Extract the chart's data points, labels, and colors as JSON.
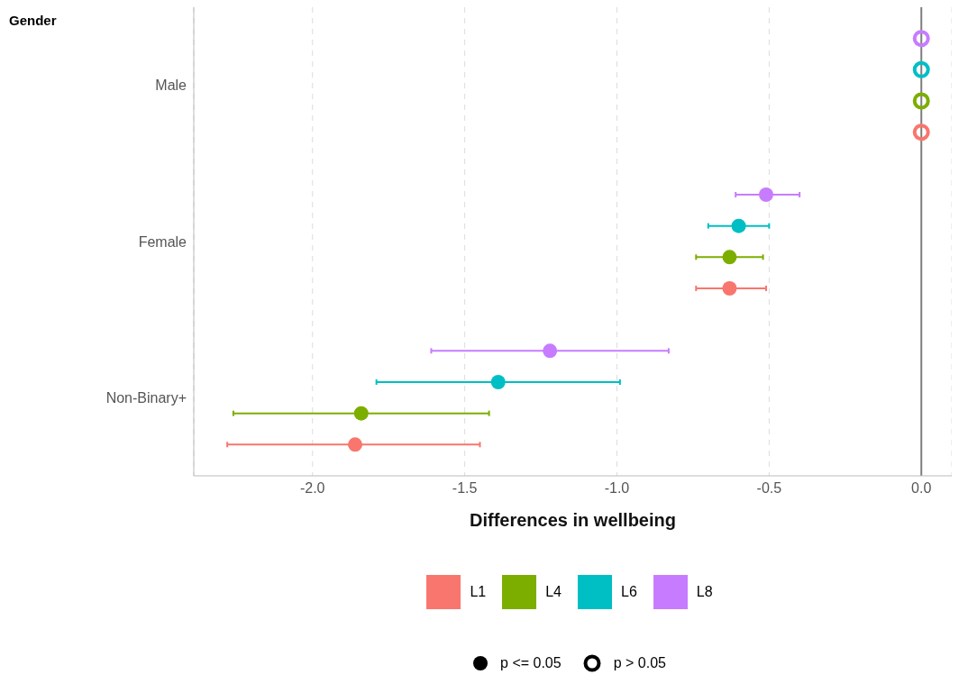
{
  "chart_data": {
    "type": "scatter",
    "orientation": "horizontal",
    "ylabel": "Gender",
    "xlabel": "Differences in wellbeing",
    "categories": [
      "Male",
      "Female",
      "Non-Binary+"
    ],
    "series": [
      {
        "name": "L1",
        "color": "#f8766d",
        "values": [
          0,
          -0.63,
          -1.86
        ],
        "errors": [
          null,
          [
            -0.74,
            -0.51
          ],
          [
            -2.28,
            -1.45
          ]
        ]
      },
      {
        "name": "L4",
        "color": "#7cae00",
        "values": [
          0,
          -0.63,
          -1.84
        ],
        "errors": [
          null,
          [
            -0.74,
            -0.52
          ],
          [
            -2.26,
            -1.42
          ]
        ]
      },
      {
        "name": "L6",
        "color": "#00bfc4",
        "values": [
          0,
          -0.6,
          -1.39
        ],
        "errors": [
          null,
          [
            -0.7,
            -0.5
          ],
          [
            -1.79,
            -0.99
          ]
        ]
      },
      {
        "name": "L8",
        "color": "#c77cff",
        "values": [
          0,
          -0.51,
          -1.22
        ],
        "errors": [
          null,
          [
            -0.61,
            -0.4
          ],
          [
            -1.61,
            -0.83
          ]
        ]
      }
    ],
    "xlim": [
      -2.39,
      0.1
    ],
    "xticks": [
      {
        "value": -2,
        "label": "-2.0"
      },
      {
        "value": -1.5,
        "label": "-1.5"
      },
      {
        "value": -1,
        "label": "-1.0"
      },
      {
        "value": -0.5,
        "label": "-0.5"
      },
      {
        "value": 0,
        "label": "0.0"
      }
    ],
    "ref_lines": [
      {
        "axis": "x",
        "value": 0,
        "color": "#7f7f7f"
      }
    ],
    "grid": "x",
    "legend": "bottom",
    "marker": "circle",
    "annotations": [
      "p <= 0.05",
      "p > 0.05"
    ]
  }
}
